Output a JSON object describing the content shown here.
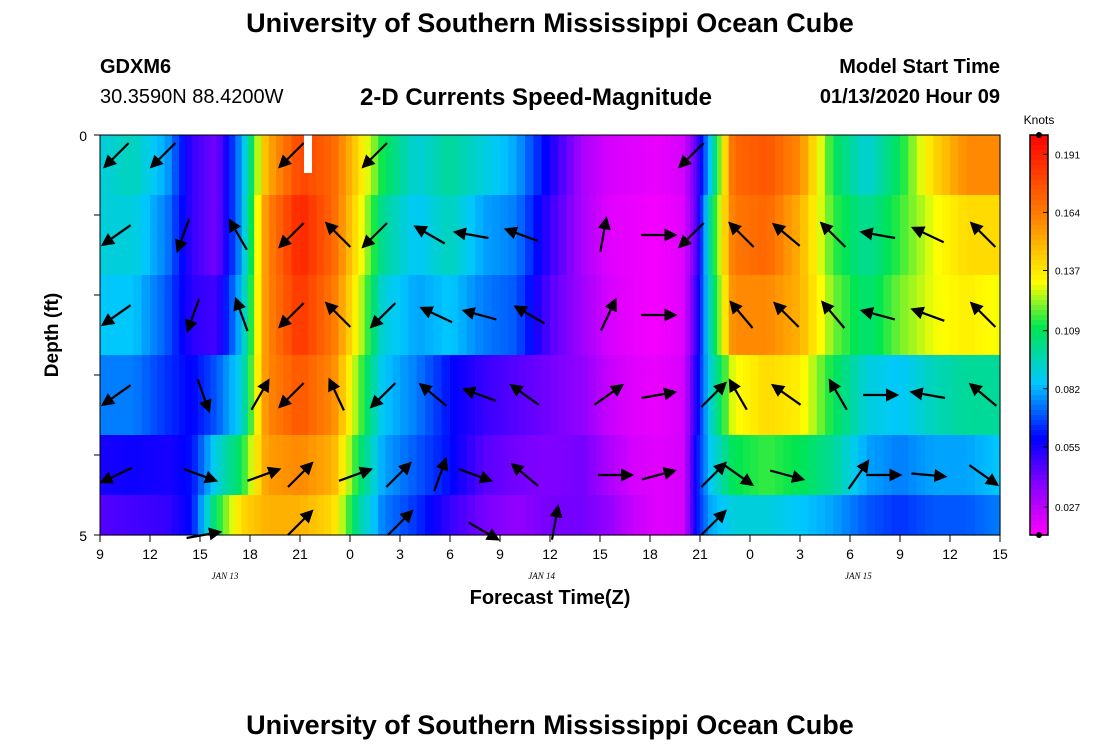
{
  "page": {
    "title_top": "University of Southern Mississippi Ocean Cube",
    "title_bottom": "University of Southern Mississippi Ocean Cube",
    "station_id": "GDXM6",
    "station_coords": "30.3590N 88.4200W",
    "chart_title": "2-D Currents Speed-Magnitude",
    "model_label": "Model Start Time",
    "model_time": "01/13/2020 Hour 09"
  },
  "chart_data": {
    "type": "heatmap",
    "title": "2-D Currents Speed-Magnitude",
    "xlabel": "Forecast Time(Z)",
    "ylabel": "Depth (ft)",
    "ylim": [
      0,
      5
    ],
    "y_ticks": [
      "0",
      "5"
    ],
    "x_hours_from_start": [
      0,
      3,
      6,
      9,
      12,
      15,
      18,
      21,
      24,
      27,
      30,
      33,
      36,
      39,
      42,
      45,
      48,
      51,
      54
    ],
    "x_tick_labels": [
      "9",
      "12",
      "15",
      "18",
      "21",
      "0",
      "3",
      "6",
      "9",
      "12",
      "15",
      "18",
      "21",
      "0",
      "3",
      "6",
      "9",
      "12",
      "15"
    ],
    "date_labels": [
      {
        "hour": 7.5,
        "label": "JAN 13"
      },
      {
        "hour": 26.5,
        "label": "JAN 14"
      },
      {
        "hour": 45.5,
        "label": "JAN 15"
      }
    ],
    "colorbar": {
      "unit": "Knots",
      "min": 0.014,
      "max": 0.2,
      "ticks": [
        0.191,
        0.164,
        0.137,
        0.109,
        0.082,
        0.055,
        0.027
      ]
    },
    "layer_depths_ft": [
      0.25,
      1.25,
      2.25,
      3.25,
      4.25,
      4.75
    ],
    "speed_columns": [
      {
        "h": 0,
        "v": [
          0.09,
          0.09,
          0.085,
          0.075,
          0.055,
          0.045
        ]
      },
      {
        "h": 2,
        "v": [
          0.095,
          0.09,
          0.085,
          0.075,
          0.057,
          0.048
        ]
      },
      {
        "h": 4,
        "v": [
          0.08,
          0.075,
          0.07,
          0.065,
          0.055,
          0.05
        ]
      },
      {
        "h": 5.5,
        "v": [
          0.05,
          0.05,
          0.052,
          0.058,
          0.06,
          0.06
        ]
      },
      {
        "h": 7,
        "v": [
          0.04,
          0.04,
          0.048,
          0.07,
          0.09,
          0.11
        ]
      },
      {
        "h": 8.5,
        "v": [
          0.08,
          0.08,
          0.085,
          0.09,
          0.11,
          0.14
        ]
      },
      {
        "h": 10,
        "v": [
          0.15,
          0.16,
          0.16,
          0.16,
          0.155,
          0.15
        ]
      },
      {
        "h": 12,
        "v": [
          0.18,
          0.19,
          0.185,
          0.175,
          0.16,
          0.15
        ]
      },
      {
        "h": 14,
        "v": [
          0.17,
          0.17,
          0.165,
          0.16,
          0.15,
          0.14
        ]
      },
      {
        "h": 15.5,
        "v": [
          0.14,
          0.135,
          0.13,
          0.12,
          0.11,
          0.1
        ]
      },
      {
        "h": 17,
        "v": [
          0.11,
          0.1,
          0.09,
          0.085,
          0.08,
          0.075
        ]
      },
      {
        "h": 19,
        "v": [
          0.09,
          0.085,
          0.08,
          0.075,
          0.07,
          0.065
        ]
      },
      {
        "h": 21,
        "v": [
          0.1,
          0.095,
          0.085,
          0.06,
          0.06,
          0.05
        ]
      },
      {
        "h": 23,
        "v": [
          0.09,
          0.08,
          0.075,
          0.05,
          0.045,
          0.04
        ]
      },
      {
        "h": 25,
        "v": [
          0.08,
          0.075,
          0.07,
          0.045,
          0.04,
          0.035
        ]
      },
      {
        "h": 27,
        "v": [
          0.055,
          0.05,
          0.045,
          0.04,
          0.038,
          0.04
        ]
      },
      {
        "h": 29,
        "v": [
          0.03,
          0.03,
          0.032,
          0.035,
          0.04,
          0.04
        ]
      },
      {
        "h": 30.5,
        "v": [
          0.022,
          0.02,
          0.022,
          0.025,
          0.03,
          0.035
        ]
      },
      {
        "h": 32,
        "v": [
          0.02,
          0.018,
          0.018,
          0.02,
          0.022,
          0.025
        ]
      },
      {
        "h": 33.5,
        "v": [
          0.018,
          0.016,
          0.016,
          0.018,
          0.02,
          0.02
        ]
      },
      {
        "h": 35,
        "v": [
          0.022,
          0.02,
          0.02,
          0.022,
          0.022,
          0.022
        ]
      },
      {
        "h": 35.8,
        "v": [
          0.045,
          0.045,
          0.05,
          0.055,
          0.06,
          0.06
        ]
      },
      {
        "h": 36.6,
        "v": [
          0.085,
          0.1,
          0.095,
          0.09,
          0.085,
          0.08
        ]
      },
      {
        "h": 38,
        "v": [
          0.17,
          0.165,
          0.16,
          0.13,
          0.11,
          0.09
        ]
      },
      {
        "h": 40,
        "v": [
          0.175,
          0.17,
          0.16,
          0.14,
          0.115,
          0.09
        ]
      },
      {
        "h": 42,
        "v": [
          0.16,
          0.15,
          0.15,
          0.135,
          0.11,
          0.085
        ]
      },
      {
        "h": 44,
        "v": [
          0.11,
          0.115,
          0.12,
          0.11,
          0.1,
          0.08
        ]
      },
      {
        "h": 46,
        "v": [
          0.09,
          0.1,
          0.105,
          0.09,
          0.08,
          0.07
        ]
      },
      {
        "h": 48,
        "v": [
          0.11,
          0.115,
          0.12,
          0.085,
          0.075,
          0.065
        ]
      },
      {
        "h": 50,
        "v": [
          0.14,
          0.13,
          0.13,
          0.095,
          0.08,
          0.07
        ]
      },
      {
        "h": 52,
        "v": [
          0.16,
          0.14,
          0.135,
          0.1,
          0.08,
          0.07
        ]
      },
      {
        "h": 54,
        "v": [
          0.16,
          0.14,
          0.13,
          0.1,
          0.085,
          0.075
        ]
      }
    ],
    "vectors": [
      {
        "h": 1,
        "d": 0.25,
        "dir": 225
      },
      {
        "h": 3.8,
        "d": 0.25,
        "dir": 225
      },
      {
        "h": 11.5,
        "d": 0.25,
        "dir": 225
      },
      {
        "h": 16.5,
        "d": 0.25,
        "dir": 225
      },
      {
        "h": 35.5,
        "d": 0.25,
        "dir": 225
      },
      {
        "h": 1,
        "d": 1.25,
        "dir": 235
      },
      {
        "h": 5,
        "d": 1.25,
        "dir": 200
      },
      {
        "h": 8.3,
        "d": 1.25,
        "dir": 330
      },
      {
        "h": 11.5,
        "d": 1.25,
        "dir": 225
      },
      {
        "h": 14.3,
        "d": 1.25,
        "dir": 315
      },
      {
        "h": 16.5,
        "d": 1.25,
        "dir": 225
      },
      {
        "h": 19.8,
        "d": 1.25,
        "dir": 300
      },
      {
        "h": 22.3,
        "d": 1.25,
        "dir": 280
      },
      {
        "h": 25.3,
        "d": 1.25,
        "dir": 290
      },
      {
        "h": 30.2,
        "d": 1.25,
        "dir": 10
      },
      {
        "h": 33.5,
        "d": 1.25,
        "dir": 90
      },
      {
        "h": 35.5,
        "d": 1.25,
        "dir": 225
      },
      {
        "h": 38.5,
        "d": 1.25,
        "dir": 315
      },
      {
        "h": 41.2,
        "d": 1.25,
        "dir": 310
      },
      {
        "h": 44,
        "d": 1.25,
        "dir": 315
      },
      {
        "h": 46.7,
        "d": 1.25,
        "dir": 280
      },
      {
        "h": 49.7,
        "d": 1.25,
        "dir": 295
      },
      {
        "h": 53,
        "d": 1.25,
        "dir": 315
      },
      {
        "h": 1,
        "d": 2.25,
        "dir": 235
      },
      {
        "h": 5.6,
        "d": 2.25,
        "dir": 200
      },
      {
        "h": 8.5,
        "d": 2.25,
        "dir": 340
      },
      {
        "h": 11.5,
        "d": 2.25,
        "dir": 225
      },
      {
        "h": 14.3,
        "d": 2.25,
        "dir": 315
      },
      {
        "h": 17,
        "d": 2.25,
        "dir": 225
      },
      {
        "h": 20.2,
        "d": 2.25,
        "dir": 295
      },
      {
        "h": 22.8,
        "d": 2.25,
        "dir": 285
      },
      {
        "h": 25.8,
        "d": 2.25,
        "dir": 300
      },
      {
        "h": 30.5,
        "d": 2.25,
        "dir": 25
      },
      {
        "h": 33.5,
        "d": 2.25,
        "dir": 90
      },
      {
        "h": 38.5,
        "d": 2.25,
        "dir": 320
      },
      {
        "h": 41.2,
        "d": 2.25,
        "dir": 315
      },
      {
        "h": 44,
        "d": 2.25,
        "dir": 320
      },
      {
        "h": 46.7,
        "d": 2.25,
        "dir": 285
      },
      {
        "h": 49.7,
        "d": 2.25,
        "dir": 290
      },
      {
        "h": 53,
        "d": 2.25,
        "dir": 315
      },
      {
        "h": 1,
        "d": 3.25,
        "dir": 235
      },
      {
        "h": 6.2,
        "d": 3.25,
        "dir": 160
      },
      {
        "h": 9.6,
        "d": 3.25,
        "dir": 30
      },
      {
        "h": 11.5,
        "d": 3.25,
        "dir": 225
      },
      {
        "h": 14.2,
        "d": 3.25,
        "dir": 335
      },
      {
        "h": 17,
        "d": 3.25,
        "dir": 225
      },
      {
        "h": 20,
        "d": 3.25,
        "dir": 310
      },
      {
        "h": 22.8,
        "d": 3.25,
        "dir": 290
      },
      {
        "h": 25.5,
        "d": 3.25,
        "dir": 305
      },
      {
        "h": 30.5,
        "d": 3.25,
        "dir": 55
      },
      {
        "h": 33.5,
        "d": 3.25,
        "dir": 80
      },
      {
        "h": 36.8,
        "d": 3.25,
        "dir": 45
      },
      {
        "h": 38.3,
        "d": 3.25,
        "dir": 330
      },
      {
        "h": 41.2,
        "d": 3.25,
        "dir": 305
      },
      {
        "h": 44.3,
        "d": 3.25,
        "dir": 330
      },
      {
        "h": 46.8,
        "d": 3.25,
        "dir": 90
      },
      {
        "h": 49.7,
        "d": 3.25,
        "dir": 280
      },
      {
        "h": 53,
        "d": 3.25,
        "dir": 310
      },
      {
        "h": 1,
        "d": 4.25,
        "dir": 245
      },
      {
        "h": 6,
        "d": 4.25,
        "dir": 110
      },
      {
        "h": 9.8,
        "d": 4.25,
        "dir": 70
      },
      {
        "h": 12,
        "d": 4.25,
        "dir": 45
      },
      {
        "h": 15.3,
        "d": 4.25,
        "dir": 70
      },
      {
        "h": 17.9,
        "d": 4.25,
        "dir": 45
      },
      {
        "h": 20.4,
        "d": 4.25,
        "dir": 20
      },
      {
        "h": 22.5,
        "d": 4.25,
        "dir": 110
      },
      {
        "h": 25.5,
        "d": 4.25,
        "dir": 310
      },
      {
        "h": 30.9,
        "d": 4.25,
        "dir": 90
      },
      {
        "h": 33.5,
        "d": 4.25,
        "dir": 75
      },
      {
        "h": 36.8,
        "d": 4.25,
        "dir": 45
      },
      {
        "h": 38.3,
        "d": 4.25,
        "dir": 125
      },
      {
        "h": 41.2,
        "d": 4.25,
        "dir": 105
      },
      {
        "h": 45.5,
        "d": 4.25,
        "dir": 35
      },
      {
        "h": 47,
        "d": 4.25,
        "dir": 90
      },
      {
        "h": 49.7,
        "d": 4.25,
        "dir": 95
      },
      {
        "h": 53,
        "d": 4.25,
        "dir": 125
      },
      {
        "h": 6.2,
        "d": 5.0,
        "dir": 80
      },
      {
        "h": 12,
        "d": 4.85,
        "dir": 45
      },
      {
        "h": 18,
        "d": 4.85,
        "dir": 45
      },
      {
        "h": 23,
        "d": 4.95,
        "dir": 120
      },
      {
        "h": 27.3,
        "d": 4.85,
        "dir": 10
      },
      {
        "h": 36.8,
        "d": 4.85,
        "dir": 45
      }
    ]
  }
}
